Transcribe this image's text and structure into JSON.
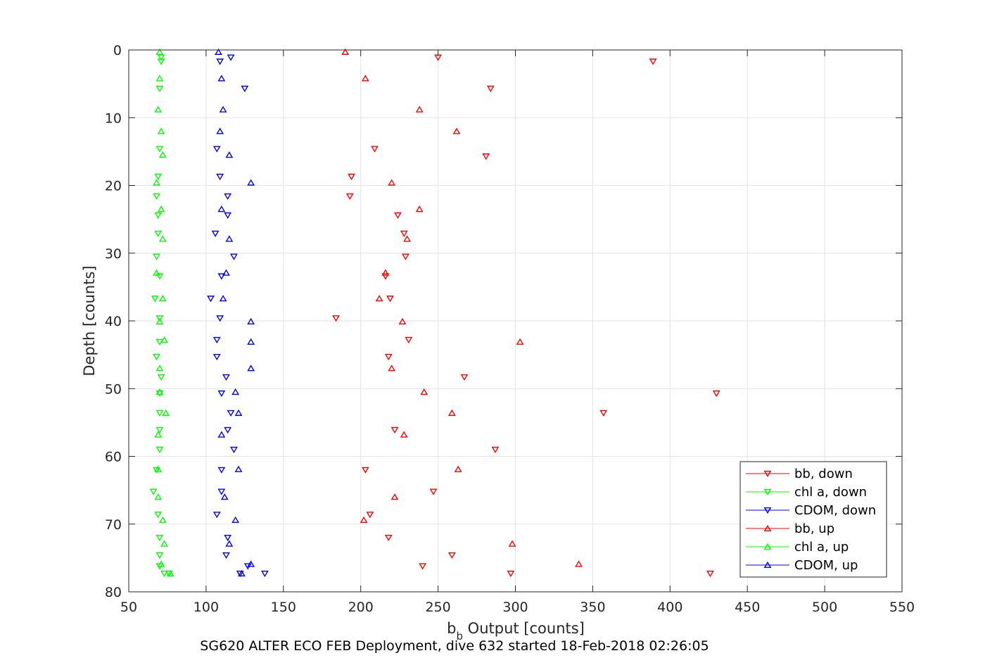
{
  "chart_data": {
    "type": "scatter",
    "xlabel_main": "b",
    "xlabel_sub": "b",
    "xlabel_rest": " Output [counts]",
    "ylabel": "Depth [counts]",
    "caption": "SG620 ALTER ECO FEB Deployment, dive 632 started 18-Feb-2018 02:26:05",
    "xlim": [
      50,
      550
    ],
    "ylim": [
      0,
      80
    ],
    "y_reversed": true,
    "grid": true,
    "legend_position": "bottom-right",
    "xticks": [
      "50",
      "100",
      "150",
      "200",
      "250",
      "300",
      "350",
      "400",
      "450",
      "500",
      "550"
    ],
    "yticks": [
      "0",
      "10",
      "20",
      "30",
      "40",
      "50",
      "60",
      "70",
      "80"
    ],
    "series": [
      {
        "name": "bb, down",
        "color": "#ff0000",
        "marker": "triangle-down",
        "points": [
          [
            250,
            1.1
          ],
          [
            389,
            1.7
          ],
          [
            284,
            5.7
          ],
          [
            209,
            14.6
          ],
          [
            281,
            15.7
          ],
          [
            194,
            18.7
          ],
          [
            193,
            21.6
          ],
          [
            224,
            24.4
          ],
          [
            228,
            27.1
          ],
          [
            229,
            30.5
          ],
          [
            216,
            33.4
          ],
          [
            219,
            36.7
          ],
          [
            184,
            39.6
          ],
          [
            231,
            42.8
          ],
          [
            218,
            45.3
          ],
          [
            267,
            48.3
          ],
          [
            430,
            50.7
          ],
          [
            357,
            53.6
          ],
          [
            222,
            56.1
          ],
          [
            287,
            59.0
          ],
          [
            203,
            62.0
          ],
          [
            247,
            65.2
          ],
          [
            206,
            68.6
          ],
          [
            218,
            72.0
          ],
          [
            259,
            74.6
          ],
          [
            240,
            76.2
          ],
          [
            297,
            77.3
          ],
          [
            426,
            77.3
          ]
        ]
      },
      {
        "name": "chl a, down",
        "color": "#00ff00",
        "marker": "triangle-down",
        "points": [
          [
            71,
            1.1
          ],
          [
            71,
            1.7
          ],
          [
            70,
            5.7
          ],
          [
            70,
            14.6
          ],
          [
            69,
            18.7
          ],
          [
            68,
            21.6
          ],
          [
            69,
            24.4
          ],
          [
            69,
            27.1
          ],
          [
            68,
            30.5
          ],
          [
            70,
            33.4
          ],
          [
            67,
            36.7
          ],
          [
            70,
            39.6
          ],
          [
            70,
            43.1
          ],
          [
            68,
            45.3
          ],
          [
            71,
            48.3
          ],
          [
            70,
            50.7
          ],
          [
            70,
            53.6
          ],
          [
            70,
            56.1
          ],
          [
            70,
            59.0
          ],
          [
            68,
            62.0
          ],
          [
            66,
            65.2
          ],
          [
            69,
            68.6
          ],
          [
            70,
            72.0
          ],
          [
            70,
            74.6
          ],
          [
            70,
            76.2
          ],
          [
            73,
            77.3
          ],
          [
            76,
            77.3
          ]
        ]
      },
      {
        "name": "CDOM, down",
        "color": "#0000ff",
        "marker": "triangle-down",
        "points": [
          [
            116,
            1.1
          ],
          [
            109,
            1.7
          ],
          [
            125,
            5.7
          ],
          [
            107,
            14.6
          ],
          [
            109,
            18.7
          ],
          [
            114,
            21.6
          ],
          [
            114,
            24.4
          ],
          [
            106,
            27.1
          ],
          [
            118,
            30.5
          ],
          [
            110,
            33.4
          ],
          [
            103,
            36.7
          ],
          [
            109,
            39.6
          ],
          [
            107,
            42.8
          ],
          [
            107,
            45.3
          ],
          [
            113,
            48.3
          ],
          [
            110,
            50.7
          ],
          [
            116,
            53.6
          ],
          [
            114,
            56.1
          ],
          [
            118,
            59.0
          ],
          [
            110,
            62.0
          ],
          [
            110,
            65.2
          ],
          [
            107,
            68.6
          ],
          [
            114,
            72.0
          ],
          [
            113,
            74.6
          ],
          [
            127,
            76.2
          ],
          [
            122,
            77.3
          ],
          [
            138,
            77.3
          ]
        ]
      },
      {
        "name": "bb, up",
        "color": "#ff0000",
        "marker": "triangle-up",
        "points": [
          [
            190,
            0.3
          ],
          [
            203,
            4.2
          ],
          [
            238,
            8.8
          ],
          [
            262,
            12.0
          ],
          [
            220,
            19.6
          ],
          [
            238,
            23.5
          ],
          [
            230,
            27.9
          ],
          [
            216,
            32.9
          ],
          [
            212,
            36.7
          ],
          [
            227,
            40.1
          ],
          [
            303,
            43.1
          ],
          [
            220,
            47.0
          ],
          [
            241,
            50.5
          ],
          [
            259,
            53.6
          ],
          [
            228,
            56.8
          ],
          [
            263,
            61.9
          ],
          [
            222,
            66.0
          ],
          [
            202,
            69.4
          ],
          [
            298,
            72.9
          ],
          [
            341,
            75.9
          ]
        ]
      },
      {
        "name": "chl a, up",
        "color": "#00ff00",
        "marker": "triangle-up",
        "points": [
          [
            70,
            0.3
          ],
          [
            70,
            4.2
          ],
          [
            69,
            8.8
          ],
          [
            71,
            12.0
          ],
          [
            72,
            15.5
          ],
          [
            68,
            19.6
          ],
          [
            71,
            23.5
          ],
          [
            72,
            27.9
          ],
          [
            68,
            32.9
          ],
          [
            72,
            36.7
          ],
          [
            70,
            40.1
          ],
          [
            73,
            42.8
          ],
          [
            70,
            47.0
          ],
          [
            70,
            50.5
          ],
          [
            74,
            53.6
          ],
          [
            69,
            56.8
          ],
          [
            69,
            61.9
          ],
          [
            69,
            66.0
          ],
          [
            72,
            69.4
          ],
          [
            73,
            72.9
          ],
          [
            71,
            75.9
          ],
          [
            77,
            77.3
          ]
        ]
      },
      {
        "name": "CDOM, up",
        "color": "#0000ff",
        "marker": "triangle-up",
        "points": [
          [
            108,
            0.3
          ],
          [
            110,
            4.2
          ],
          [
            111,
            8.8
          ],
          [
            109,
            12.0
          ],
          [
            115,
            15.5
          ],
          [
            129,
            19.6
          ],
          [
            110,
            23.5
          ],
          [
            115,
            27.9
          ],
          [
            113,
            32.9
          ],
          [
            111,
            36.7
          ],
          [
            129,
            40.1
          ],
          [
            129,
            43.1
          ],
          [
            129,
            47.0
          ],
          [
            119,
            50.5
          ],
          [
            121,
            53.6
          ],
          [
            110,
            56.8
          ],
          [
            121,
            61.9
          ],
          [
            112,
            66.0
          ],
          [
            119,
            69.4
          ],
          [
            115,
            72.9
          ],
          [
            129,
            75.9
          ],
          [
            123,
            77.3
          ]
        ]
      }
    ]
  }
}
